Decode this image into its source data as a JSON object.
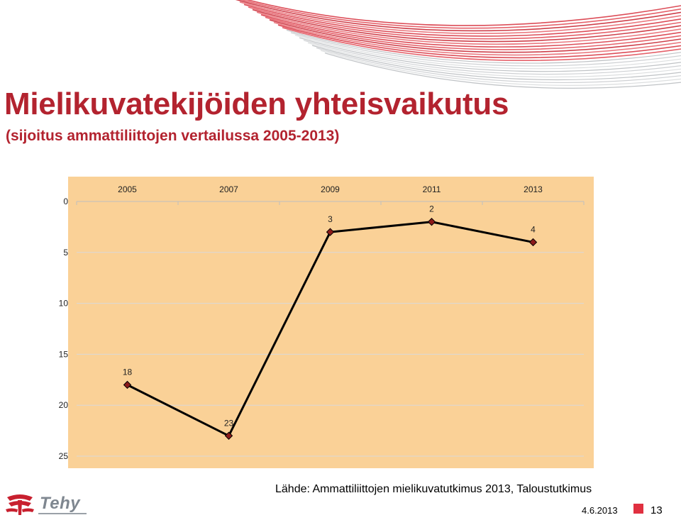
{
  "slide": {
    "title": "Mielikuvatekijöiden yhteisvaikutus",
    "subtitle": "(sijoitus ammattiliittojen vertailussa 2005-2013)",
    "source": "Lähde: Ammattiliittojen mielikuvatutkimus 2013, Taloustutkimus",
    "date": "4.6.2013",
    "page_number": "13",
    "logo_text": "Tehy"
  },
  "colors": {
    "title": "#b3232f",
    "plot_background": "#fad197",
    "line": "#000000",
    "marker_fill": "#8b1a1a",
    "accent": "#e03040"
  },
  "chart_data": {
    "type": "line",
    "x": [
      "2005",
      "2007",
      "2009",
      "2011",
      "2013"
    ],
    "series": [
      {
        "values": [
          18,
          23,
          3,
          2,
          4
        ]
      }
    ],
    "data_labels": [
      "18",
      "23",
      "3",
      "2",
      "4"
    ],
    "y_ticks": [
      "0",
      "5",
      "10",
      "15",
      "20",
      "25"
    ],
    "ylim": [
      0,
      25
    ],
    "y_reversed": true,
    "x_axis_position": "top",
    "grid": true
  }
}
